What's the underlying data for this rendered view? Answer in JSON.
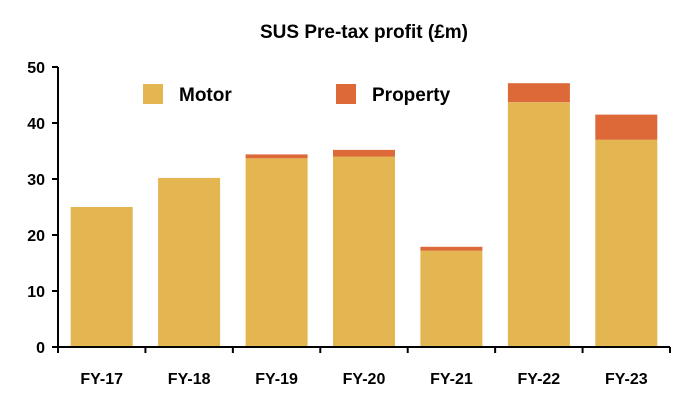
{
  "chart_data": {
    "type": "bar",
    "stacked": true,
    "title": "SUS Pre-tax profit (£m)",
    "xlabel": "",
    "ylabel": "",
    "categories": [
      "FY-17",
      "FY-18",
      "FY-19",
      "FY-20",
      "FY-21",
      "FY-22",
      "FY-23"
    ],
    "series": [
      {
        "name": "Motor",
        "color": "#E3B652",
        "values": [
          25.0,
          30.2,
          33.7,
          34.0,
          17.2,
          43.7,
          37.0
        ]
      },
      {
        "name": "Property",
        "color": "#DE6938",
        "values": [
          0.0,
          0.0,
          0.7,
          1.2,
          0.7,
          3.4,
          4.5
        ]
      }
    ],
    "ylim": [
      0,
      50
    ],
    "yticks": [
      "0",
      "10",
      "20",
      "30",
      "40",
      "50"
    ],
    "grid": false,
    "legend": "top"
  }
}
